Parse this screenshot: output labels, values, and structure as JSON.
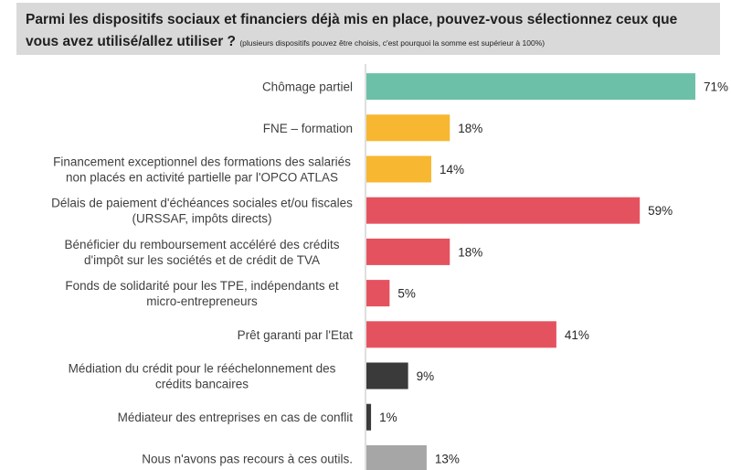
{
  "title": {
    "line1": "Parmi les dispositifs sociaux et financiers déjà mis en place, pouvez-vous sélectionnez ceux que",
    "line2": "vous avez utilisé/allez utiliser ?",
    "note": "(plusieurs dispositifs pouvez être choisis, c'est pourquoi la somme est supérieur à 100%)"
  },
  "chart_data": {
    "type": "bar",
    "orientation": "horizontal",
    "grid": false,
    "xlim": [
      0,
      71
    ],
    "categories": [
      [
        "Chômage partiel"
      ],
      [
        "FNE – formation"
      ],
      [
        "Financement exceptionnel des formations des salariés",
        "non placés en activité partielle par l'OPCO ATLAS"
      ],
      [
        "Délais de paiement d'échéances sociales et/ou fiscales",
        "(URSSAF, impôts directs)"
      ],
      [
        "Bénéficier du remboursement accéléré des crédits",
        "d'impôt sur les sociétés et de crédit de TVA"
      ],
      [
        "Fonds de solidarité pour les TPE, indépendants et",
        "micro-entrepreneurs"
      ],
      [
        "Prêt garanti par l'Etat"
      ],
      [
        "Médiation du crédit pour le rééchelonnement des",
        "crédits bancaires"
      ],
      [
        "Médiateur des entreprises en cas de conflit"
      ],
      [
        "Nous n'avons pas recours à ces outils."
      ]
    ],
    "values": [
      71,
      18,
      14,
      59,
      18,
      5,
      41,
      9,
      1,
      13
    ],
    "value_labels": [
      "71%",
      "18%",
      "14%",
      "59%",
      "18%",
      "5%",
      "41%",
      "9%",
      "1%",
      "13%"
    ],
    "colors": [
      "#6cc0a8",
      "#f7b731",
      "#f7b731",
      "#e5525f",
      "#e5525f",
      "#e5525f",
      "#e5525f",
      "#3a3a3a",
      "#3a3a3a",
      "#a6a6a6"
    ]
  }
}
